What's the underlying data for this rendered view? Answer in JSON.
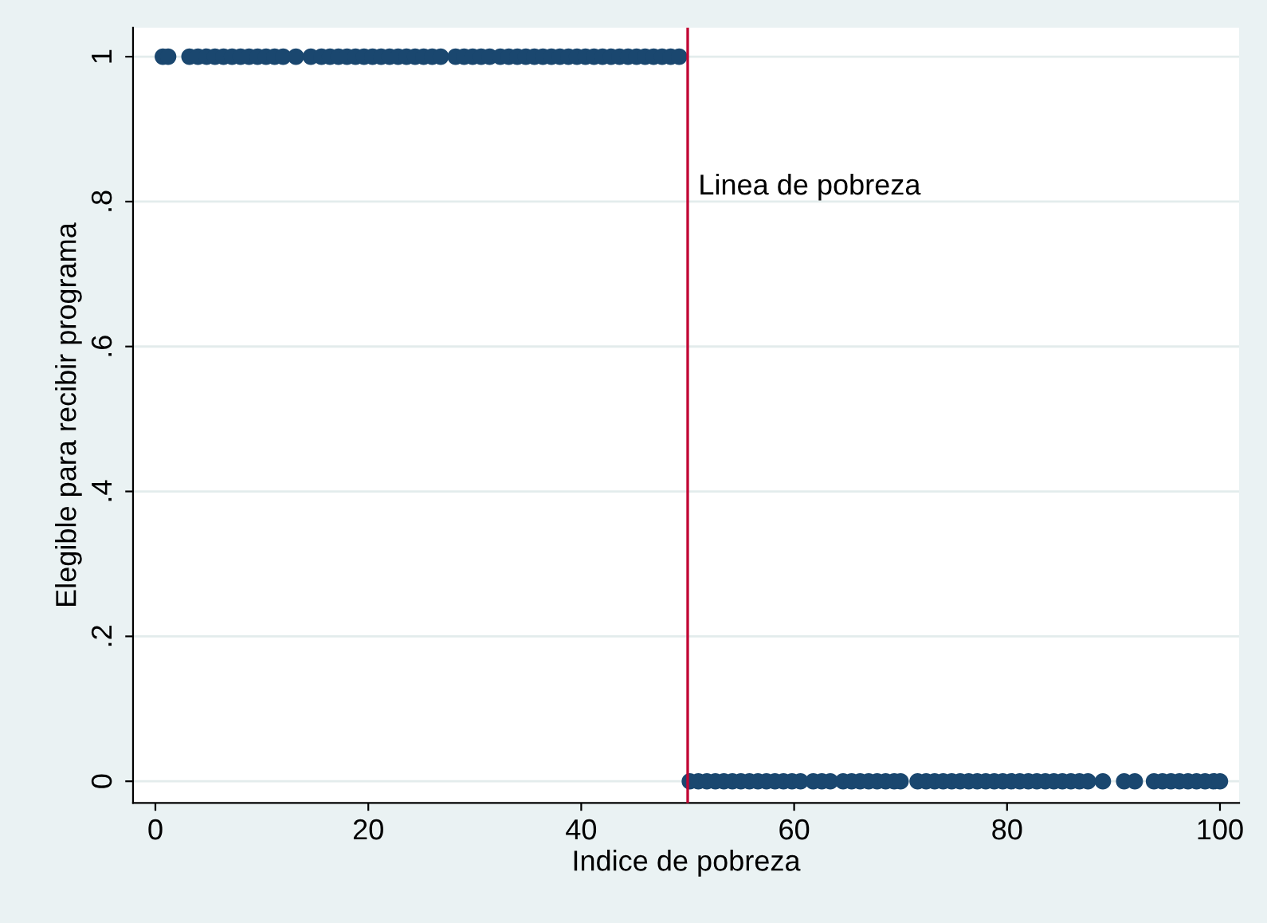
{
  "chart_data": {
    "type": "scatter",
    "xlabel": "Indice de pobreza",
    "ylabel": "Elegible para recibir programa",
    "series": [
      {
        "color": "#1a476f",
        "x": [
          0.7,
          1.2,
          3.2,
          4.0,
          4.8,
          5.6,
          6.4,
          7.2,
          8.0,
          8.8,
          9.6,
          10.4,
          11.2,
          12.0,
          13.2,
          14.6,
          15.6,
          16.4,
          17.2,
          18.0,
          18.8,
          19.6,
          20.4,
          21.2,
          22.0,
          22.8,
          23.6,
          24.4,
          25.2,
          26.0,
          26.8,
          28.2,
          29.0,
          29.8,
          30.6,
          31.4,
          32.4,
          33.2,
          34.0,
          34.8,
          35.6,
          36.4,
          37.2,
          38.0,
          38.8,
          39.6,
          40.4,
          41.2,
          42.0,
          42.8,
          43.6,
          44.4,
          45.2,
          46.0,
          46.8,
          47.6,
          48.4,
          49.2,
          50.2,
          51.0,
          51.8,
          52.6,
          53.4,
          54.2,
          55.0,
          55.8,
          56.6,
          57.4,
          58.2,
          59.0,
          59.8,
          60.6,
          61.8,
          62.6,
          63.4,
          64.6,
          65.4,
          66.2,
          67.0,
          67.8,
          68.6,
          69.4,
          70.0,
          71.6,
          72.4,
          73.2,
          74.0,
          74.8,
          75.6,
          76.4,
          77.2,
          78.0,
          78.8,
          79.6,
          80.4,
          81.2,
          82.0,
          82.8,
          83.6,
          84.4,
          85.2,
          86.0,
          86.8,
          87.6,
          89.0,
          91.0,
          92.0,
          93.8,
          94.6,
          95.4,
          96.2,
          97.0,
          97.8,
          98.6,
          99.4,
          100
        ],
        "values": [
          1,
          1,
          1,
          1,
          1,
          1,
          1,
          1,
          1,
          1,
          1,
          1,
          1,
          1,
          1,
          1,
          1,
          1,
          1,
          1,
          1,
          1,
          1,
          1,
          1,
          1,
          1,
          1,
          1,
          1,
          1,
          1,
          1,
          1,
          1,
          1,
          1,
          1,
          1,
          1,
          1,
          1,
          1,
          1,
          1,
          1,
          1,
          1,
          1,
          1,
          1,
          1,
          1,
          1,
          1,
          1,
          1,
          1,
          0,
          0,
          0,
          0,
          0,
          0,
          0,
          0,
          0,
          0,
          0,
          0,
          0,
          0,
          0,
          0,
          0,
          0,
          0,
          0,
          0,
          0,
          0,
          0,
          0,
          0,
          0,
          0,
          0,
          0,
          0,
          0,
          0,
          0,
          0,
          0,
          0,
          0,
          0,
          0,
          0,
          0,
          0,
          0,
          0,
          0,
          0,
          0,
          0,
          0,
          0,
          0,
          0,
          0,
          0,
          0,
          0,
          0
        ]
      }
    ],
    "xlim": [
      -2.1,
      101.8
    ],
    "xticks": [
      0,
      20,
      40,
      60,
      80,
      100
    ],
    "ylim": [
      -0.03,
      1.04
    ],
    "yticks": [
      {
        "value": 0,
        "label": "0"
      },
      {
        "value": 0.2,
        "label": ".2"
      },
      {
        "value": 0.4,
        "label": ".4"
      },
      {
        "value": 0.6,
        "label": ".6"
      },
      {
        "value": 0.8,
        "label": ".8"
      },
      {
        "value": 1,
        "label": "1"
      }
    ],
    "grid": "y",
    "marker": "circle",
    "ref_lines": [
      {
        "axis": "x",
        "value": 50,
        "label": "Linea de pobreza",
        "color": "#c10534"
      }
    ]
  }
}
